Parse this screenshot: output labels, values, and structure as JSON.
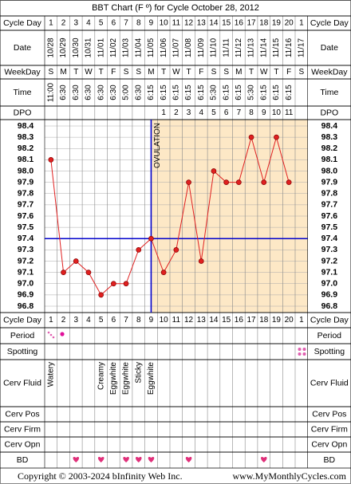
{
  "chart_data": {
    "type": "line",
    "title": "BBT Chart (F º) for Cycle October 28, 2012",
    "categories": [
      1,
      2,
      3,
      4,
      5,
      6,
      7,
      8,
      9,
      10,
      11,
      12,
      13,
      14,
      15,
      16,
      17,
      18,
      19,
      20,
      1
    ],
    "dates": [
      "10/28",
      "10/29",
      "10/30",
      "10/31",
      "11/01",
      "11/02",
      "11/03",
      "11/04",
      "11/05",
      "11/06",
      "11/07",
      "11/08",
      "11/09",
      "11/10",
      "11/11",
      "11/12",
      "11/13",
      "11/14",
      "11/15",
      "11/16",
      "11/17"
    ],
    "weekdays": [
      "S",
      "M",
      "T",
      "W",
      "T",
      "F",
      "S",
      "S",
      "M",
      "T",
      "W",
      "T",
      "F",
      "S",
      "S",
      "M",
      "T",
      "W",
      "T",
      "F",
      "S"
    ],
    "times": [
      "11:00",
      "6:30",
      "6:30",
      "6:30",
      "6:30",
      "6:30",
      "5:00",
      "6:30",
      "6:15",
      "6:15",
      "6:15",
      "6:15",
      "6:15",
      "5:30",
      "6:15",
      "6:15",
      "5:30",
      "6:15",
      "6:15",
      "6:15",
      null
    ],
    "dpo": [
      null,
      null,
      null,
      null,
      null,
      null,
      null,
      null,
      null,
      1,
      2,
      3,
      4,
      5,
      6,
      7,
      8,
      9,
      10,
      11,
      null
    ],
    "values": [
      98.1,
      97.1,
      97.2,
      97.1,
      96.9,
      97.0,
      97.0,
      97.3,
      97.4,
      97.1,
      97.3,
      97.9,
      97.2,
      98.0,
      97.9,
      97.9,
      98.3,
      97.9,
      98.3,
      97.9,
      null
    ],
    "color": "#e02020",
    "ylim": [
      96.8,
      98.4
    ],
    "yticks": [
      96.8,
      96.9,
      {
        "value": 97.0,
        "label": "97.0"
      },
      97.1,
      97.2,
      97.3,
      97.4,
      97.5,
      97.6,
      97.7,
      97.8,
      97.9,
      {
        "value": 98.0,
        "label": "98.0"
      },
      98.1,
      98.2,
      98.3,
      98.4
    ],
    "grid": true,
    "coverline": 97.4,
    "coverline_color": "#0000cc",
    "ovulation": {
      "label": "OVULATION",
      "day": 9
    },
    "row_labels": {
      "cycle_day": "Cycle Day",
      "date": "Date",
      "weekday": "WeekDay",
      "time": "Time",
      "dpo": "DPO",
      "period": "Period",
      "spotting": "Spotting",
      "cerv_fluid": "Cerv Fluid",
      "cerv_pos": "Cerv Pos",
      "cerv_firm": "Cerv Firm",
      "cerv_opn": "Cerv Opn",
      "bd": "BD"
    },
    "cerv_fluid": [
      "Watery",
      null,
      null,
      null,
      "Creamy",
      "Eggwhite",
      "Eggwhite",
      "Sticky",
      "Eggwhite",
      null,
      null,
      null,
      null,
      null,
      null,
      null,
      null,
      null,
      null,
      null,
      null
    ],
    "copyright": "Copyright © 2003-2024 bInfinity Web Inc.",
    "website": "www.MyMonthlyCycles.com"
  }
}
